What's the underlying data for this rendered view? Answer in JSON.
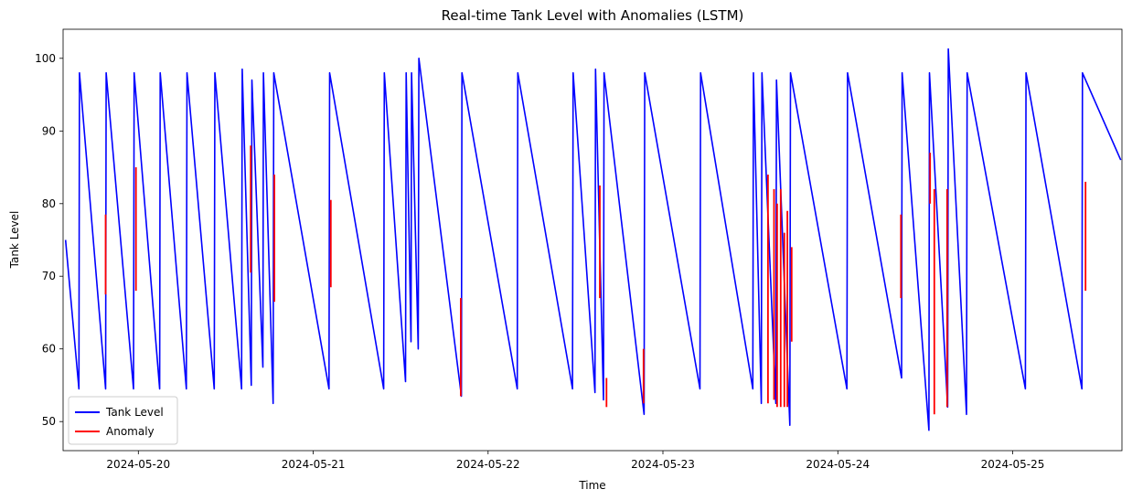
{
  "chart_data": {
    "type": "line",
    "title": "Real-time Tank Level with Anomalies (LSTM)",
    "xlabel": "Time",
    "ylabel": "Tank Level",
    "x_range": [
      "2024-05-19 13:40",
      "2024-05-25 15:00"
    ],
    "ylim": [
      46,
      104
    ],
    "y_ticks": [
      50,
      60,
      70,
      80,
      90,
      100
    ],
    "x_ticks": [
      "2024-05-20",
      "2024-05-21",
      "2024-05-22",
      "2024-05-23",
      "2024-05-24",
      "2024-05-25"
    ],
    "grid": false,
    "legend": {
      "placement": "lower-left"
    },
    "pattern": "sawtooth: fill to ~98, decay to ~54",
    "series": [
      {
        "name": "Tank Level",
        "color": "#0000ff",
        "cycles": [
          {
            "t0": "2024-05-19 14:00",
            "v0": 75.0,
            "t1": "2024-05-19 15:50",
            "v1": 54.5
          },
          {
            "t0": "2024-05-19 15:55",
            "v0": 98.0,
            "t1": "2024-05-19 19:30",
            "v1": 54.5
          },
          {
            "t0": "2024-05-19 19:35",
            "v0": 98.0,
            "t1": "2024-05-19 23:20",
            "v1": 54.5
          },
          {
            "t0": "2024-05-19 23:25",
            "v0": 98.0,
            "t1": "2024-05-20 02:55",
            "v1": 54.5
          },
          {
            "t0": "2024-05-20 03:00",
            "v0": 98.0,
            "t1": "2024-05-20 06:35",
            "v1": 54.5
          },
          {
            "t0": "2024-05-20 06:40",
            "v0": 98.0,
            "t1": "2024-05-20 10:25",
            "v1": 54.5
          },
          {
            "t0": "2024-05-20 10:30",
            "v0": 98.0,
            "t1": "2024-05-20 14:10",
            "v1": 54.5
          },
          {
            "t0": "2024-05-20 14:15",
            "v0": 98.5,
            "t1": "2024-05-20 15:30",
            "v1": 55.0
          },
          {
            "t0": "2024-05-20 15:35",
            "v0": 97.0,
            "t1": "2024-05-20 17:05",
            "v1": 57.5
          },
          {
            "t0": "2024-05-20 17:10",
            "v0": 98.0,
            "t1": "2024-05-20 18:30",
            "v1": 52.5
          },
          {
            "t0": "2024-05-20 18:35",
            "v0": 98.0,
            "t1": "2024-05-21 02:10",
            "v1": 54.5
          },
          {
            "t0": "2024-05-21 02:15",
            "v0": 98.0,
            "t1": "2024-05-21 09:40",
            "v1": 54.5
          },
          {
            "t0": "2024-05-21 09:45",
            "v0": 98.0,
            "t1": "2024-05-21 12:40",
            "v1": 55.5
          },
          {
            "t0": "2024-05-21 12:45",
            "v0": 98.0,
            "t1": "2024-05-21 13:25",
            "v1": 61.0
          },
          {
            "t0": "2024-05-21 13:30",
            "v0": 98.0,
            "t1": "2024-05-21 14:25",
            "v1": 60.0
          },
          {
            "t0": "2024-05-21 14:30",
            "v0": 100.0,
            "t1": "2024-05-21 20:20",
            "v1": 53.5
          },
          {
            "t0": "2024-05-21 20:25",
            "v0": 98.0,
            "t1": "2024-05-22 04:00",
            "v1": 54.5
          },
          {
            "t0": "2024-05-22 04:05",
            "v0": 98.0,
            "t1": "2024-05-22 11:35",
            "v1": 54.5
          },
          {
            "t0": "2024-05-22 11:40",
            "v0": 98.0,
            "t1": "2024-05-22 14:40",
            "v1": 54.0
          },
          {
            "t0": "2024-05-22 14:45",
            "v0": 98.5,
            "t1": "2024-05-22 15:50",
            "v1": 53.0
          },
          {
            "t0": "2024-05-22 15:55",
            "v0": 98.0,
            "t1": "2024-05-22 21:25",
            "v1": 51.0
          },
          {
            "t0": "2024-05-22 21:30",
            "v0": 98.0,
            "t1": "2024-05-23 05:05",
            "v1": 54.5
          },
          {
            "t0": "2024-05-23 05:10",
            "v0": 98.0,
            "t1": "2024-05-23 12:20",
            "v1": 54.5
          },
          {
            "t0": "2024-05-23 12:25",
            "v0": 98.0,
            "t1": "2024-05-23 13:30",
            "v1": 52.5
          },
          {
            "t0": "2024-05-23 13:35",
            "v0": 98.0,
            "t1": "2024-05-23 15:30",
            "v1": 52.5
          },
          {
            "t0": "2024-05-23 15:35",
            "v0": 97.0,
            "t1": "2024-05-23 17:25",
            "v1": 49.5
          },
          {
            "t0": "2024-05-23 17:30",
            "v0": 98.0,
            "t1": "2024-05-24 01:15",
            "v1": 54.5
          },
          {
            "t0": "2024-05-24 01:20",
            "v0": 98.0,
            "t1": "2024-05-24 08:45",
            "v1": 56.0
          },
          {
            "t0": "2024-05-24 08:50",
            "v0": 98.0,
            "t1": "2024-05-24 12:30",
            "v1": 48.8
          },
          {
            "t0": "2024-05-24 12:35",
            "v0": 98.0,
            "t1": "2024-05-24 15:05",
            "v1": 52.0
          },
          {
            "t0": "2024-05-24 15:10",
            "v0": 101.3,
            "t1": "2024-05-24 17:40",
            "v1": 51.0
          },
          {
            "t0": "2024-05-24 17:45",
            "v0": 98.0,
            "t1": "2024-05-25 01:45",
            "v1": 54.5
          },
          {
            "t0": "2024-05-25 01:50",
            "v0": 98.0,
            "t1": "2024-05-25 09:30",
            "v1": 54.5
          },
          {
            "t0": "2024-05-25 09:35",
            "v0": 98.0,
            "t1": "2024-05-25 14:50",
            "v1": 86.0
          }
        ]
      },
      {
        "name": "Anomaly",
        "color": "#ff0000",
        "segments": [
          {
            "t": "2024-05-19 19:30",
            "y0": 67.5,
            "y1": 78.5
          },
          {
            "t": "2024-05-19 23:40",
            "y0": 68.0,
            "y1": 85.0
          },
          {
            "t": "2024-05-20 15:25",
            "y0": 70.5,
            "y1": 88.0
          },
          {
            "t": "2024-05-20 18:40",
            "y0": 66.5,
            "y1": 84.0
          },
          {
            "t": "2024-05-21 02:25",
            "y0": 68.5,
            "y1": 80.5
          },
          {
            "t": "2024-05-21 20:15",
            "y0": 53.5,
            "y1": 67.0
          },
          {
            "t": "2024-05-22 15:20",
            "y0": 67.0,
            "y1": 82.5
          },
          {
            "t": "2024-05-22 16:15",
            "y0": 52.0,
            "y1": 56.0
          },
          {
            "t": "2024-05-22 21:20",
            "y0": 52.5,
            "y1": 60.0
          },
          {
            "t": "2024-05-23 14:25",
            "y0": 52.5,
            "y1": 84.0
          },
          {
            "t": "2024-05-23 15:15",
            "y0": 53.0,
            "y1": 82.0
          },
          {
            "t": "2024-05-23 15:40",
            "y0": 52.0,
            "y1": 80.0
          },
          {
            "t": "2024-05-23 16:10",
            "y0": 52.0,
            "y1": 82.0
          },
          {
            "t": "2024-05-23 16:40",
            "y0": 52.0,
            "y1": 76.0
          },
          {
            "t": "2024-05-23 17:05",
            "y0": 52.0,
            "y1": 79.0
          },
          {
            "t": "2024-05-23 17:40",
            "y0": 61.0,
            "y1": 74.0
          },
          {
            "t": "2024-05-24 08:40",
            "y0": 67.0,
            "y1": 78.5
          },
          {
            "t": "2024-05-24 12:40",
            "y0": 80.0,
            "y1": 87.0
          },
          {
            "t": "2024-05-24 13:15",
            "y0": 51.0,
            "y1": 82.0
          },
          {
            "t": "2024-05-24 15:00",
            "y0": 52.0,
            "y1": 82.0
          },
          {
            "t": "2024-05-25 10:00",
            "y0": 68.0,
            "y1": 83.0
          }
        ]
      }
    ]
  }
}
